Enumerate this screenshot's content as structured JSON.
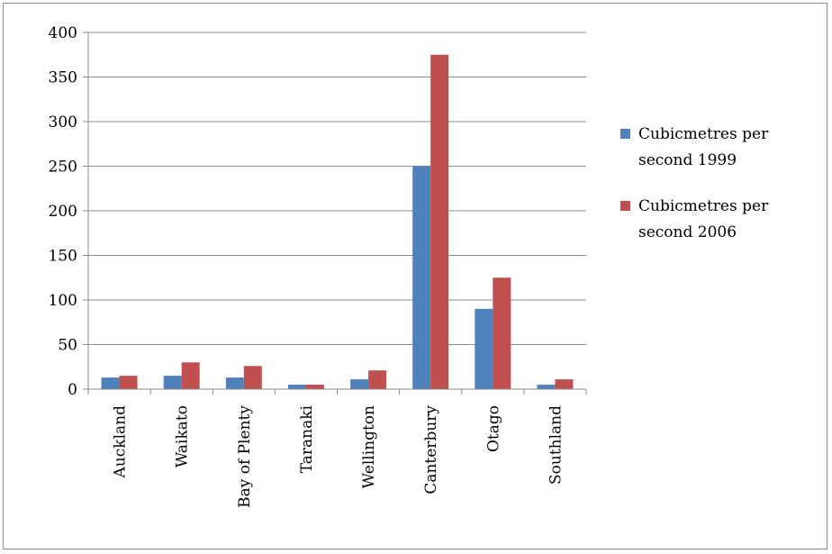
{
  "chart_data": {
    "type": "bar",
    "title": "",
    "xlabel": "",
    "ylabel": "",
    "categories": [
      "Auckland",
      "Waikato",
      "Bay of Plenty",
      "Taranaki",
      "Wellington",
      "Canterbury",
      "Otago",
      "Southland"
    ],
    "series": [
      {
        "name": "Cubicmetres per second 1999",
        "legend_lines": [
          "Cubicmetres per",
          "second 1999"
        ],
        "color": "#4f81bd",
        "values": [
          13,
          15,
          13,
          5,
          11,
          250,
          90,
          5
        ]
      },
      {
        "name": "Cubicmetres per second 2006",
        "legend_lines": [
          "Cubicmetres per",
          "second 2006"
        ],
        "color": "#c0504d",
        "values": [
          15,
          30,
          26,
          5,
          21,
          375,
          125,
          11
        ]
      }
    ],
    "ylim": [
      0,
      400
    ],
    "yticks": [
      0,
      50,
      100,
      150,
      200,
      250,
      300,
      350,
      400
    ],
    "grid": true,
    "legend_position": "right"
  }
}
